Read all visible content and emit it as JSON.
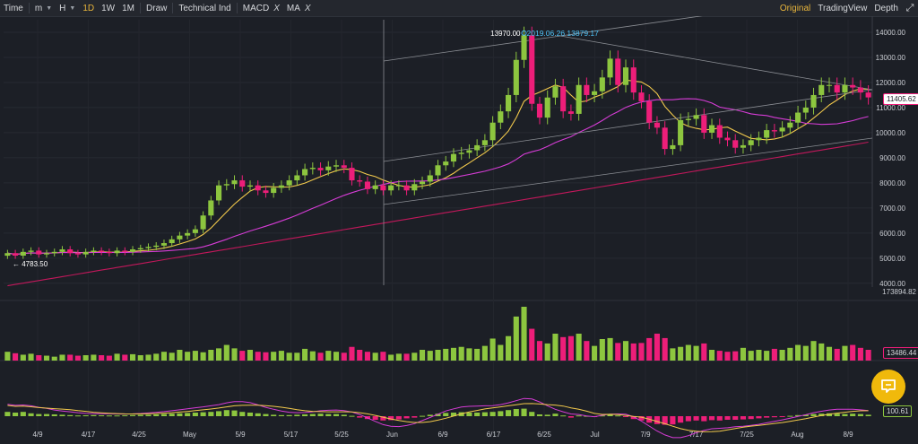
{
  "toolbar": {
    "time_label": "Time",
    "minute_label": "m",
    "hour_label": "H",
    "day_label": "1D",
    "week_label": "1W",
    "month_label": "1M",
    "draw_label": "Draw",
    "technical_label": "Technical Ind",
    "macd_label": "MACD",
    "ma_label": "MA",
    "remove_symbol": "X",
    "original_label": "Original",
    "tradingview_label": "TradingView",
    "depth_label": "Depth"
  },
  "chart_data": {
    "type": "candlestick",
    "price_axis_ticks": [
      "14000.00",
      "13000.00",
      "12000.00",
      "11000.00",
      "10000.00",
      "9000.00",
      "8000.00",
      "7000.00",
      "6000.00",
      "5000.00",
      "4000.00"
    ],
    "price_range": [
      3850,
      14500
    ],
    "x_ticks": [
      "4/9",
      "4/17",
      "4/25",
      "May",
      "5/9",
      "5/17",
      "5/25",
      "Jun",
      "6/9",
      "6/17",
      "6/25",
      "Jul",
      "7/9",
      "7/17",
      "7/25",
      "Aug",
      "8/9"
    ],
    "current_price": "11405.62",
    "high_label": "13970.00",
    "high_annotation": "2019.06.26 13879.17",
    "low_label": "4783.50",
    "volume_axis_label": "173894.82",
    "volume_current": "13486.44",
    "macd_current": "100.61",
    "colors": {
      "up": "#8dc63f",
      "down": "#ed1e79",
      "ma_fast": "#f2c94c",
      "ma_mid": "#d63cd6",
      "ma_slow": "#c2185b",
      "background": "#1c1f26"
    },
    "daily_close": [
      5200,
      5100,
      5250,
      5300,
      5150,
      5200,
      5250,
      5350,
      5200,
      5150,
      5250,
      5300,
      5250,
      5200,
      5300,
      5250,
      5350,
      5400,
      5450,
      5500,
      5600,
      5750,
      5900,
      6000,
      6150,
      6700,
      7300,
      7900,
      7950,
      8100,
      7850,
      7900,
      7700,
      7600,
      7800,
      7900,
      8100,
      8300,
      8550,
      8600,
      8500,
      8650,
      8700,
      8600,
      8100,
      8050,
      7750,
      7900,
      7700,
      7900,
      7900,
      7700,
      7950,
      8050,
      8300,
      8700,
      8850,
      9150,
      9200,
      9300,
      9500,
      9700,
      10400,
      10850,
      11500,
      12900,
      13879,
      11150,
      10600,
      11400,
      11850,
      10850,
      10750,
      11900,
      11500,
      11650,
      12200,
      12950,
      11900,
      12600,
      11600,
      11250,
      10400,
      10200,
      9350,
      9500,
      10500,
      10550,
      10700,
      10000,
      10300,
      9800,
      9700,
      9400,
      9500,
      9700,
      9800,
      10100,
      10050,
      10200,
      10400,
      10800,
      11000,
      11500,
      11900,
      11900,
      11600,
      11900,
      11800,
      11600,
      11405
    ],
    "volume_series": [
      18,
      15,
      12,
      14,
      11,
      10,
      8,
      12,
      12,
      10,
      11,
      12,
      11,
      10,
      14,
      12,
      13,
      11,
      12,
      14,
      18,
      16,
      22,
      18,
      20,
      17,
      22,
      25,
      32,
      25,
      20,
      22,
      18,
      17,
      18,
      20,
      16,
      16,
      24,
      19,
      16,
      20,
      18,
      16,
      28,
      22,
      18,
      16,
      18,
      12,
      14,
      14,
      16,
      22,
      20,
      22,
      24,
      26,
      28,
      25,
      24,
      30,
      45,
      32,
      50,
      90,
      110,
      65,
      40,
      35,
      55,
      48,
      50,
      55,
      40,
      30,
      44,
      46,
      36,
      40,
      35,
      36,
      46,
      55,
      46,
      25,
      28,
      32,
      30,
      35,
      22,
      20,
      18,
      19,
      26,
      20,
      22,
      20,
      24,
      22,
      26,
      32,
      30,
      40,
      35,
      28,
      24,
      30,
      32,
      26,
      22
    ],
    "macd_hist": [
      0.6,
      0.5,
      0.6,
      0.4,
      0.3,
      0.3,
      0.25,
      0.2,
      0.15,
      0.1,
      0.12,
      0.15,
      0.12,
      0.1,
      0.1,
      0.12,
      0.15,
      0.18,
      0.2,
      0.25,
      0.3,
      0.35,
      0.4,
      0.45,
      0.5,
      0.55,
      0.6,
      0.7,
      0.85,
      0.8,
      0.6,
      0.5,
      0.4,
      0.3,
      0.2,
      0.15,
      0.15,
      0.2,
      0.25,
      0.3,
      0.35,
      0.3,
      0.3,
      0.2,
      0.05,
      -0.2,
      -0.4,
      -0.5,
      -0.6,
      -0.55,
      -0.45,
      -0.3,
      -0.2,
      0.05,
      0.2,
      0.35,
      0.45,
      0.5,
      0.55,
      0.5,
      0.5,
      0.55,
      0.6,
      0.7,
      0.85,
      1,
      1.05,
      0.6,
      0.25,
      0.2,
      0.35,
      0.1,
      -0.2,
      0.1,
      0.05,
      -0.05,
      0.1,
      0.3,
      0.1,
      -0.1,
      -0.4,
      -0.6,
      -0.9,
      -1.1,
      -1.2,
      -1.15,
      -0.9,
      -0.7,
      -0.6,
      -0.7,
      -0.55,
      -0.6,
      -0.5,
      -0.5,
      -0.45,
      -0.4,
      -0.3,
      -0.2,
      -0.15,
      -0.1,
      0.05,
      0.15,
      0.2,
      0.3,
      0.35,
      0.4,
      0.35,
      0.3,
      0.35,
      0.3,
      0.2
    ]
  },
  "chat_icon": "chat-bubble-icon"
}
